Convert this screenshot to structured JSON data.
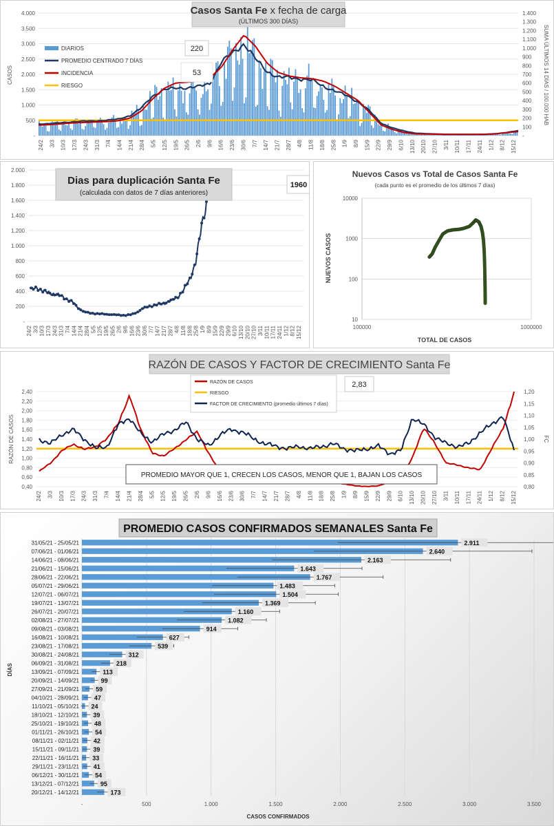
{
  "colors": {
    "bar": "#5b9bd5",
    "navy": "#1f3864",
    "red": "#c00000",
    "gold": "#ffc000",
    "green": "#375623",
    "dark": "#0d2350"
  },
  "chart_data": [
    {
      "type": "bar",
      "title_bold": "Casos  Santa  Fe",
      "title_rest": " x fecha de carga",
      "subtitle": "(ÚLTIMOS 300 DÍAS)",
      "ylabel": "CASOS",
      "y2label": "SUMA ÚLTIMOS 14 DÍAS / 100.000 HAB",
      "ylim": [
        0,
        4000
      ],
      "y2lim": [
        0,
        1400
      ],
      "y_ticks": [
        "-",
        "500",
        "1.000",
        "1.500",
        "2.000",
        "2.500",
        "3.000",
        "3.500",
        "4.000"
      ],
      "y2_ticks": [
        "-",
        "100",
        "200",
        "300",
        "400",
        "500",
        "600",
        "700",
        "800",
        "900",
        "1.000",
        "1.100",
        "1.200",
        "1.300",
        "1.400"
      ],
      "x_ticks": [
        "24/2",
        "3/3",
        "10/3",
        "17/3",
        "24/3",
        "31/3",
        "7/4",
        "14/4",
        "21/4",
        "28/4",
        "5/5",
        "12/5",
        "19/5",
        "26/5",
        "2/6",
        "9/6",
        "16/6",
        "23/6",
        "30/6",
        "7/7",
        "14/7",
        "21/7",
        "28/7",
        "4/8",
        "11/8",
        "18/8",
        "25/8",
        "1/9",
        "8/9",
        "15/9",
        "22/9",
        "29/9",
        "6/10",
        "13/10",
        "20/10",
        "27/10",
        "3/11",
        "10/11",
        "17/11",
        "24/11",
        "1/12",
        "8/12",
        "15/12"
      ],
      "legend": [
        "DIARIOS",
        "PROMEDIO CENTRADO 7 DÍAS",
        "INCIDENCIA",
        "RIESGO"
      ],
      "annotations": [
        "220",
        "53"
      ],
      "riesgo": 500,
      "promedio": [
        380,
        390,
        420,
        450,
        470,
        480,
        500,
        540,
        650,
        900,
        1300,
        1500,
        1550,
        1560,
        1600,
        1700,
        2400,
        2700,
        3000,
        2500,
        2100,
        1900,
        1900,
        1850,
        1800,
        1600,
        1450,
        1300,
        1100,
        800,
        400,
        250,
        150,
        80,
        60,
        50,
        40,
        40,
        40,
        40,
        60,
        100,
        160
      ],
      "incidencia": [
        120,
        125,
        135,
        145,
        150,
        155,
        160,
        170,
        200,
        280,
        420,
        540,
        600,
        610,
        620,
        660,
        780,
        980,
        1150,
        1020,
        830,
        720,
        680,
        660,
        650,
        620,
        560,
        480,
        400,
        260,
        120,
        70,
        35,
        20,
        18,
        15,
        14,
        14,
        14,
        15,
        20,
        35,
        45
      ]
    },
    {
      "type": "line",
      "title": "Dias para duplicación Santa Fe",
      "subtitle": "(calculada con datos de 7 días anteriores)",
      "ylim": [
        0,
        2000
      ],
      "y_ticks": [
        "-",
        "200",
        "400",
        "600",
        "800",
        "1.000",
        "1.200",
        "1.400",
        "1.600",
        "1.800",
        "2.000"
      ],
      "x_ticks": [
        "24/2",
        "3/3",
        "10/3",
        "17/3",
        "24/3",
        "31/3",
        "7/4",
        "14/4",
        "21/4",
        "28/4",
        "5/5",
        "12/5",
        "19/5",
        "26/5",
        "2/6",
        "9/6",
        "16/6",
        "23/6",
        "30/6",
        "7/7",
        "14/7",
        "21/7",
        "28/7",
        "4/8",
        "11/8",
        "18/8",
        "25/8",
        "1/9",
        "8/9",
        "15/9",
        "22/9",
        "29/9",
        "6/10",
        "13/10",
        "20/10",
        "27/10",
        "3/11",
        "10/11",
        "17/11",
        "24/11",
        "1/12",
        "8/12",
        "15/12"
      ],
      "annotation": "1960",
      "values": [
        420,
        450,
        400,
        380,
        360,
        340,
        300,
        260,
        180,
        130,
        110,
        105,
        100,
        95,
        90,
        85,
        80,
        90,
        120,
        170,
        200,
        210,
        230,
        250,
        280,
        330,
        420,
        560,
        800,
        1250,
        1650
      ]
    },
    {
      "type": "scatter",
      "title": "Nuevos Casos vs Total de Casos Santa Fe",
      "subtitle": "(cada punto es el promedio de los últimos 7 días)",
      "xlabel": "TOTAL DE CASOS",
      "ylabel": "NUEVOS CASOS",
      "x_log": true,
      "y_log": true,
      "x_ticks": [
        "100000",
        "1000000"
      ],
      "y_ticks": [
        "10",
        "100",
        "1000",
        "10000"
      ],
      "points": [
        [
          250000,
          350
        ],
        [
          260000,
          420
        ],
        [
          270000,
          600
        ],
        [
          285000,
          900
        ],
        [
          300000,
          1300
        ],
        [
          320000,
          1550
        ],
        [
          345000,
          1650
        ],
        [
          375000,
          1700
        ],
        [
          400000,
          1800
        ],
        [
          430000,
          2000
        ],
        [
          455000,
          2500
        ],
        [
          470000,
          2900
        ],
        [
          490000,
          2600
        ],
        [
          505000,
          2000
        ],
        [
          515000,
          1400
        ],
        [
          522000,
          900
        ],
        [
          527000,
          500
        ],
        [
          530000,
          250
        ],
        [
          532000,
          120
        ],
        [
          533000,
          70
        ],
        [
          534000,
          40
        ],
        [
          534500,
          25
        ]
      ]
    },
    {
      "type": "line",
      "title_main": "RAZÓN DE CASOS Y FACTOR DE CRECIMIENTO",
      "title_region": " Santa Fe",
      "ylabel": "RAZÓN DE CASOS",
      "y2label": "FC",
      "ylim": [
        0.4,
        2.4
      ],
      "y2lim": [
        0.8,
        1.2
      ],
      "y_ticks": [
        "0,40",
        "0,60",
        "0,80",
        "1,00",
        "1,20",
        "1,40",
        "1,60",
        "1,80",
        "2,00",
        "2,20",
        "2,40"
      ],
      "y2_ticks": [
        "0,80",
        "0,85",
        "0,90",
        "0,95",
        "1,00",
        "1,05",
        "1,10",
        "1,15",
        "1,20"
      ],
      "x_ticks": [
        "24/2",
        "3/3",
        "10/3",
        "17/3",
        "24/3",
        "31/3",
        "7/4",
        "14/4",
        "21/4",
        "28/4",
        "5/5",
        "12/5",
        "19/5",
        "26/5",
        "2/6",
        "9/6",
        "16/6",
        "23/6",
        "30/6",
        "7/7",
        "14/7",
        "21/7",
        "28/7",
        "4/8",
        "11/8",
        "18/8",
        "25/8",
        "1/9",
        "8/9",
        "15/9",
        "22/9",
        "29/9",
        "6/10",
        "13/10",
        "20/10",
        "27/10",
        "3/11",
        "10/11",
        "17/11",
        "24/11",
        "1/12",
        "8/12",
        "15/12"
      ],
      "legend": [
        "RAZÓN DE CASOS",
        "RIESGO",
        "FACTOR DE CRECIMIENTO (promedio últimos 7 días)"
      ],
      "annotation": "2,83",
      "note": "PROMEDIO MAYOR QUE 1, CRECEN LOS CASOS, MENOR QUE 1, BAJAN LOS CASOS",
      "riesgo": 1.2,
      "razon": [
        0.72,
        0.9,
        1.15,
        1.3,
        1.18,
        1.25,
        1.4,
        1.75,
        2.3,
        1.6,
        1.1,
        1.05,
        1.2,
        1.4,
        1.55,
        1.1,
        0.7,
        0.55,
        0.5,
        0.52,
        0.55,
        0.6,
        0.6,
        0.58,
        0.55,
        0.55,
        0.5,
        0.45,
        0.42,
        0.4,
        0.42,
        0.5,
        0.6,
        1.0,
        1.65,
        1.3,
        0.9,
        0.85,
        0.8,
        0.75,
        1.2,
        1.6,
        2.4
      ],
      "fc": [
        1.0,
        0.98,
        1.02,
        1.04,
        1.0,
        0.96,
        0.97,
        1.06,
        1.09,
        1.02,
        0.99,
        1.02,
        1.04,
        1.07,
        1.0,
        0.97,
        1.02,
        1.04,
        1.03,
        1.0,
        0.98,
        0.97,
        0.96,
        0.97,
        0.96,
        0.97,
        0.98,
        0.96,
        0.95,
        0.96,
        0.97,
        0.94,
        0.95,
        1.09,
        1.06,
        1.01,
        0.98,
        0.97,
        0.98,
        1.03,
        1.06,
        1.1,
        0.95
      ]
    },
    {
      "type": "bar",
      "orientation": "horizontal",
      "title": "PROMEDIO CASOS CONFIRMADOS SEMANALES Santa Fe",
      "xlabel": "CASOS CONFIRMADOS",
      "ylabel": "DÍAS",
      "xlim": [
        0,
        3500
      ],
      "x_ticks": [
        "-",
        "500",
        "1.000",
        "1.500",
        "2.000",
        "2.500",
        "3.000",
        "3.500"
      ],
      "categories": [
        "31/05/21 - 25/05/21",
        "07/06/21 - 01/06/21",
        "14/06/21 - 08/06/21",
        "21/06/21 - 15/06/21",
        "28/06/21 - 22/06/21",
        "05/07/21 - 29/06/21",
        "12/07/21 - 06/07/21",
        "19/07/21 - 13/07/21",
        "26/07/21 - 20/07/21",
        "02/08/21 - 27/07/21",
        "09/08/21 - 03/08/21",
        "16/08/21 - 10/08/21",
        "23/08/21 - 17/08/21",
        "30/08/21 - 24/08/21",
        "06/09/21 - 31/08/21",
        "13/09/21 - 07/09/21",
        "20/09/21 - 14/09/21",
        "27/09/21 - 21/09/21",
        "04/10/21 - 28/09/21",
        "11/10/21 - 05/10/21",
        "18/10/21 - 12/10/21",
        "25/10/21 - 19/10/21",
        "01/11/21 - 26/10/21",
        "08/11/21 - 02/11/21",
        "15/11/21 - 09/11/21",
        "22/11/21 - 16/11/21",
        "29/11/21 - 23/11/21",
        "06/12/21 - 30/11/21",
        "13/12/21 - 07/12/21",
        "20/12/21 - 14/12/21"
      ],
      "values": [
        2911,
        2640,
        2163,
        1643,
        1767,
        1483,
        1504,
        1369,
        1160,
        1082,
        914,
        627,
        539,
        312,
        218,
        113,
        99,
        59,
        47,
        24,
        39,
        48,
        54,
        42,
        39,
        33,
        41,
        54,
        95,
        173
      ],
      "labels": [
        "2.911",
        "2.640",
        "2.163",
        "1.643",
        "1.767",
        "1.483",
        "1.504",
        "1.369",
        "1.160",
        "1.082",
        "914",
        "627",
        "539",
        "312",
        "218",
        "113",
        "99",
        "59",
        "47",
        "24",
        "39",
        "48",
        "54",
        "42",
        "39",
        "33",
        "41",
        "54",
        "95",
        "173"
      ]
    }
  ]
}
